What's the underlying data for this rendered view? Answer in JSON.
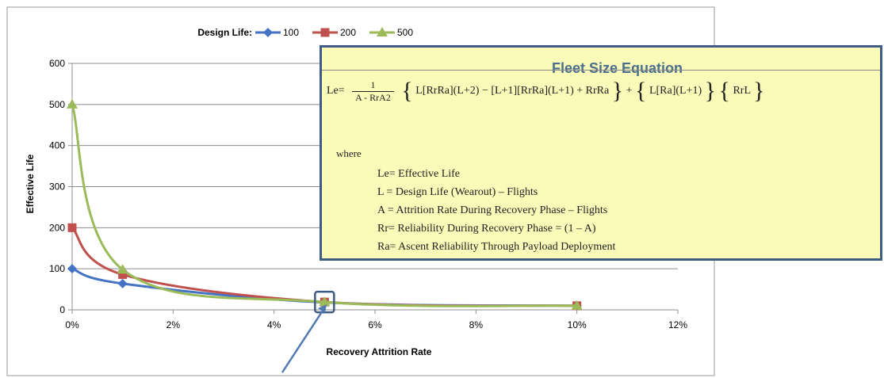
{
  "chart_data": {
    "type": "line",
    "xlabel": "Recovery Attrition Rate",
    "ylabel": "Effective Life",
    "xlim": [
      0,
      12
    ],
    "ylim": [
      0,
      600
    ],
    "x_ticks": [
      "0%",
      "2%",
      "4%",
      "6%",
      "8%",
      "10%",
      "12%"
    ],
    "y_ticks": [
      "0",
      "100",
      "200",
      "300",
      "400",
      "500",
      "600"
    ],
    "grid": "horizontal",
    "legend_title": "Design Life:",
    "legend_position": "top",
    "series": [
      {
        "name": "100",
        "color": "#4472c4",
        "marker": "diamond",
        "x": [
          0,
          1,
          5,
          10
        ],
        "y": [
          100,
          64,
          18,
          10
        ]
      },
      {
        "name": "200",
        "color": "#c0504d",
        "marker": "square",
        "x": [
          0,
          1,
          5,
          10
        ],
        "y": [
          200,
          86,
          19,
          10
        ]
      },
      {
        "name": "500",
        "color": "#9bbb59",
        "marker": "triangle",
        "x": [
          0,
          1,
          5,
          10
        ],
        "y": [
          500,
          98,
          19,
          10
        ]
      }
    ],
    "highlight": {
      "x": 5,
      "y": 19,
      "color": "#3f5a83"
    }
  },
  "equation_box": {
    "title": "Fleet Size Equation",
    "formula": {
      "lhs": "Le=",
      "frac_num": "1",
      "frac_den": "A - RrA2",
      "term1": "L[RrRa](L+2) − [L+1][RrRa](L+1) + RrRa",
      "term2": "L[Ra](L+1)",
      "term3": "RrL"
    },
    "where": "where",
    "definitions": [
      "Le= Effective Life",
      "L = Design Life (Wearout) – Flights",
      "A = Attrition Rate During Recovery Phase – Flights",
      "Rr= Reliability During Recovery Phase = (1 – A)",
      "Ra= Ascent Reliability Through Payload Deployment"
    ]
  }
}
